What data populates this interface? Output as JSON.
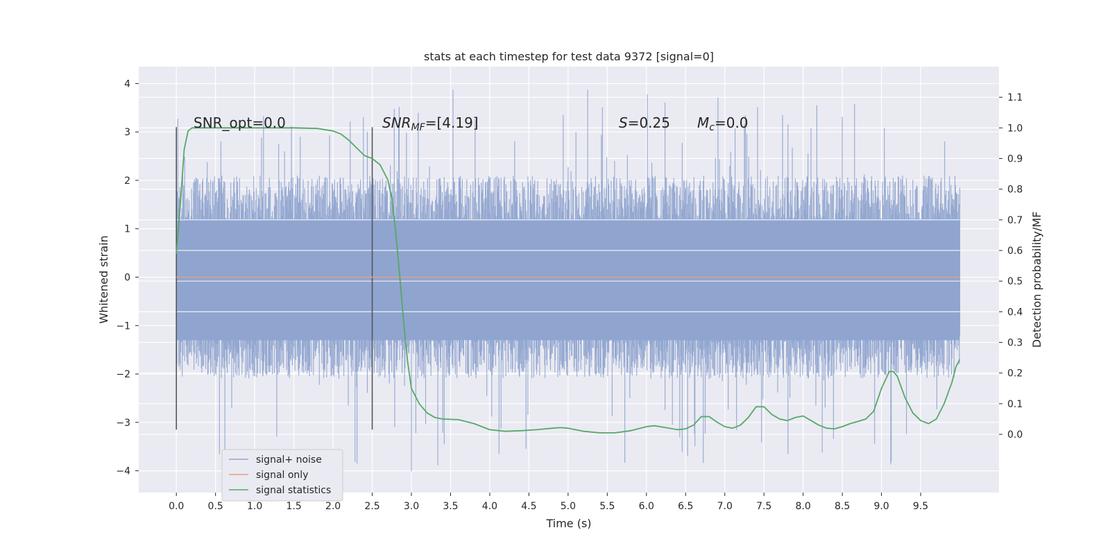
{
  "chart_data": {
    "type": "line",
    "title": "stats at each timestep for test data 9372 [signal=0]",
    "xlabel": "Time (s)",
    "ylabel": "Whitened strain",
    "ylabel_right": "Detection probability/MF",
    "xlim": [
      -0.48,
      10.5
    ],
    "ylim": [
      -4.45,
      4.35
    ],
    "ylim_right": [
      -0.19,
      1.2
    ],
    "x_ticks": [
      0.0,
      0.5,
      1.0,
      1.5,
      2.0,
      2.5,
      3.0,
      3.5,
      4.0,
      4.5,
      5.0,
      5.5,
      6.0,
      6.5,
      7.0,
      7.5,
      8.0,
      8.5,
      9.0,
      9.5
    ],
    "y_ticks": [
      -4,
      -3,
      -2,
      -1,
      0,
      1,
      2,
      3,
      4
    ],
    "y_ticks_right": [
      0.0,
      0.1,
      0.2,
      0.3,
      0.4,
      0.5,
      0.6,
      0.7,
      0.8,
      0.9,
      1.0,
      1.1
    ],
    "grid": true,
    "legend_position": "lower-left",
    "noise": {
      "x_range": [
        0.0,
        10.0
      ],
      "typical_amplitude": 2.1,
      "max_amplitude": 3.9,
      "min_amplitude": -4.05
    },
    "vertical_markers": [
      {
        "x": 0.0,
        "y_range": [
          -3.15,
          3.1
        ]
      },
      {
        "x": 2.5,
        "y_range": [
          -3.15,
          3.1
        ]
      }
    ],
    "series": [
      {
        "name": "signal+ noise",
        "color": "#8fa4cf",
        "axis": "left",
        "kind": "noise"
      },
      {
        "name": "signal only",
        "color": "#e4a083",
        "axis": "left",
        "x": [
          0.0,
          10.0
        ],
        "y": [
          0.0,
          0.0
        ]
      },
      {
        "name": "signal statistics",
        "color": "#55a868",
        "axis": "right",
        "x": [
          0.0,
          0.05,
          0.1,
          0.15,
          0.2,
          0.3,
          0.5,
          1.0,
          1.5,
          1.8,
          2.0,
          2.1,
          2.2,
          2.3,
          2.4,
          2.5,
          2.6,
          2.7,
          2.75,
          2.8,
          2.85,
          2.9,
          2.95,
          3.0,
          3.1,
          3.2,
          3.3,
          3.4,
          3.6,
          3.8,
          4.0,
          4.2,
          4.4,
          4.6,
          4.8,
          4.9,
          5.0,
          5.2,
          5.4,
          5.6,
          5.8,
          6.0,
          6.1,
          6.2,
          6.4,
          6.5,
          6.6,
          6.7,
          6.8,
          6.9,
          7.0,
          7.1,
          7.2,
          7.3,
          7.4,
          7.5,
          7.6,
          7.7,
          7.8,
          7.9,
          8.0,
          8.1,
          8.2,
          8.3,
          8.4,
          8.5,
          8.6,
          8.7,
          8.8,
          8.9,
          9.0,
          9.1,
          9.15,
          9.2,
          9.3,
          9.4,
          9.5,
          9.6,
          9.7,
          9.8,
          9.9,
          9.95,
          10.0
        ],
        "y": [
          0.59,
          0.75,
          0.93,
          0.99,
          1.0,
          1.0,
          1.0,
          1.0,
          1.0,
          0.998,
          0.99,
          0.98,
          0.96,
          0.935,
          0.91,
          0.9,
          0.88,
          0.83,
          0.77,
          0.66,
          0.52,
          0.37,
          0.24,
          0.15,
          0.1,
          0.07,
          0.055,
          0.05,
          0.048,
          0.035,
          0.015,
          0.01,
          0.012,
          0.015,
          0.02,
          0.022,
          0.02,
          0.01,
          0.005,
          0.005,
          0.012,
          0.025,
          0.028,
          0.024,
          0.015,
          0.018,
          0.03,
          0.058,
          0.058,
          0.04,
          0.025,
          0.02,
          0.03,
          0.055,
          0.09,
          0.09,
          0.065,
          0.05,
          0.045,
          0.055,
          0.06,
          0.045,
          0.03,
          0.02,
          0.018,
          0.025,
          0.035,
          0.042,
          0.05,
          0.075,
          0.15,
          0.205,
          0.205,
          0.19,
          0.12,
          0.07,
          0.045,
          0.035,
          0.05,
          0.1,
          0.17,
          0.22,
          0.245
        ]
      }
    ],
    "annotations": {
      "snr_opt": "SNR_opt=0.0",
      "snr_mf_prefix": "SNR",
      "snr_mf_sub": "MF",
      "snr_mf_value": "=[4.19]",
      "s_symbol": "S",
      "s_value": "=0.25",
      "mc_symbol": "M",
      "mc_sub": "c",
      "mc_value": "=0.0"
    }
  }
}
